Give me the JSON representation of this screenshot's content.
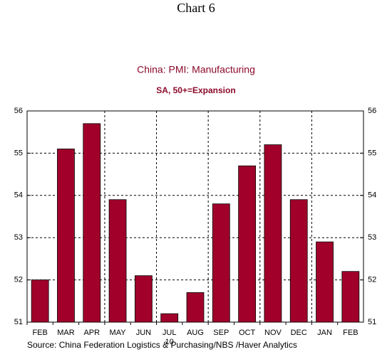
{
  "chart_data": {
    "type": "bar",
    "header": "Chart 6",
    "title": "China: PMI: Manufacturing",
    "subtitle": "SA, 50+=Expansion",
    "categories": [
      "FEB",
      "MAR",
      "APR",
      "MAY",
      "JUN",
      "JUL",
      "AUG",
      "SEP",
      "OCT",
      "NOV",
      "DEC",
      "JAN",
      "FEB"
    ],
    "year_label": "10",
    "values": [
      52.0,
      55.1,
      55.7,
      53.9,
      52.1,
      51.2,
      51.7,
      53.8,
      54.7,
      55.2,
      53.9,
      52.9,
      52.2
    ],
    "color": "#a0002a",
    "ylim": [
      51,
      56
    ],
    "yticks": [
      51,
      52,
      53,
      54,
      55,
      56
    ],
    "grid": true,
    "source": "Source:  China Federation Logistics & Purchasing/NBS /Haver Analytics"
  }
}
